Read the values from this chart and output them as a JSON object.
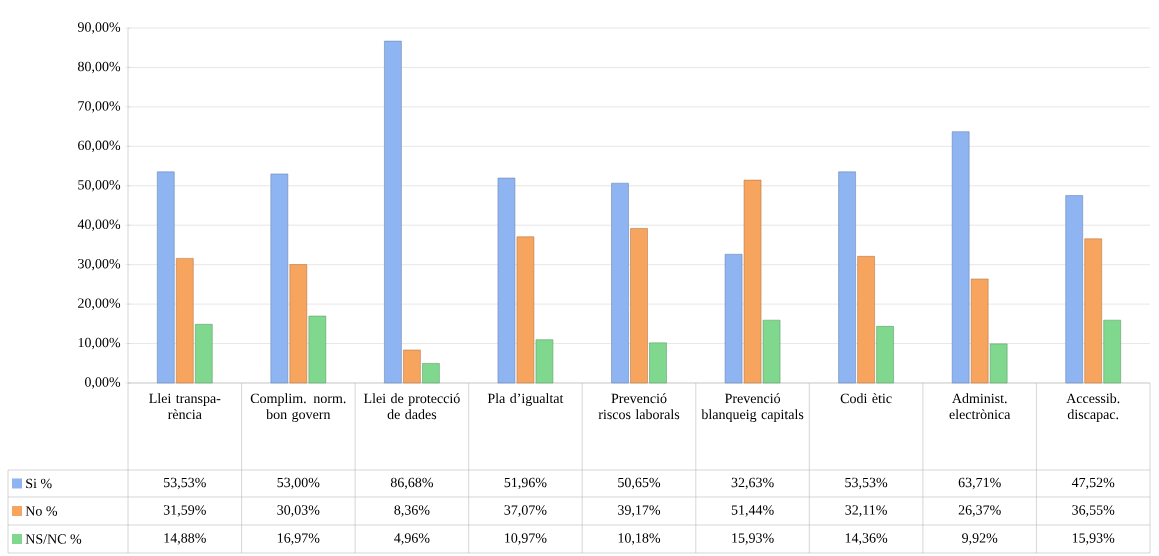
{
  "chart_data": {
    "type": "bar",
    "categories": [
      "Llei transpa-rència",
      "Complim. norm. bon govern",
      "Llei de protecció de dades",
      "Pla d’igualtat",
      "Prevenció riscos laborals",
      "Prevenció blanqueig capitals",
      "Codi ètic",
      "Administ. electrònica",
      "Accessib. discapac."
    ],
    "series": [
      {
        "name": "Si %",
        "color": "#8fb4f2",
        "values": [
          53.53,
          53.0,
          86.68,
          51.96,
          50.65,
          32.63,
          53.53,
          63.71,
          47.52
        ],
        "value_labels": [
          "53,53%",
          "53,00%",
          "86,68%",
          "51,96%",
          "50,65%",
          "32,63%",
          "53,53%",
          "63,71%",
          "47,52%"
        ]
      },
      {
        "name": "No %",
        "color": "#f7a45e",
        "values": [
          31.59,
          30.03,
          8.36,
          37.07,
          39.17,
          51.44,
          32.11,
          26.37,
          36.55
        ],
        "value_labels": [
          "31,59%",
          "30,03%",
          "8,36%",
          "37,07%",
          "39,17%",
          "51,44%",
          "32,11%",
          "26,37%",
          "36,55%"
        ]
      },
      {
        "name": "NS/NC %",
        "color": "#7fd88e",
        "values": [
          14.88,
          16.97,
          4.96,
          10.97,
          10.18,
          15.93,
          14.36,
          9.92,
          15.93
        ],
        "value_labels": [
          "14,88%",
          "16,97%",
          "4,96%",
          "10,97%",
          "10,18%",
          "15,93%",
          "14,36%",
          "9,92%",
          "15,93%"
        ]
      }
    ],
    "ylim": [
      0,
      90
    ],
    "yticks": [
      {
        "value": 0,
        "label": "0,00%"
      },
      {
        "value": 10,
        "label": "10,00%"
      },
      {
        "value": 20,
        "label": "20,00%"
      },
      {
        "value": 30,
        "label": "30,00%"
      },
      {
        "value": 40,
        "label": "40,00%"
      },
      {
        "value": 50,
        "label": "50,00%"
      },
      {
        "value": 60,
        "label": "60,00%"
      },
      {
        "value": 70,
        "label": "70,00%"
      },
      {
        "value": 80,
        "label": "80,00%"
      },
      {
        "value": 90,
        "label": "90,00%"
      }
    ],
    "grid": "y",
    "legend": "bottom"
  }
}
